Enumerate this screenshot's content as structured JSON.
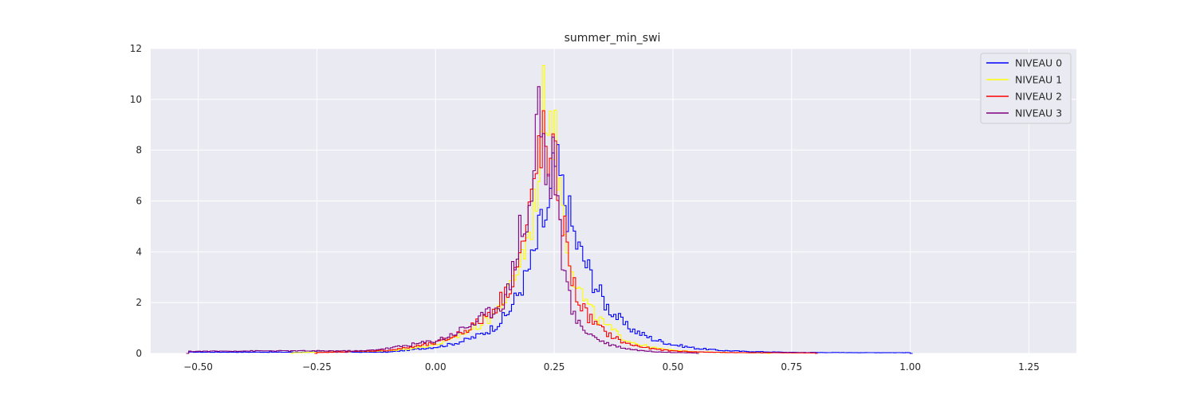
{
  "chart_data": {
    "type": "histogram",
    "title": "summer_min_swi",
    "xlabel": "",
    "ylabel": "",
    "xlim": [
      -0.6,
      1.35
    ],
    "ylim": [
      0,
      12
    ],
    "x_ticks": [
      -0.5,
      -0.25,
      0.0,
      0.25,
      0.5,
      0.75,
      1.0,
      1.25
    ],
    "x_tick_labels": [
      "−0.50",
      "−0.25",
      "0.00",
      "0.25",
      "0.50",
      "0.75",
      "1.00",
      "1.25"
    ],
    "y_ticks": [
      0,
      2,
      4,
      6,
      8,
      10,
      12
    ],
    "y_tick_labels": [
      "0",
      "2",
      "4",
      "6",
      "8",
      "10",
      "12"
    ],
    "grid": true,
    "legend_position": "top-right",
    "series": [
      {
        "name": "NIVEAU 0",
        "color": "#0000ff",
        "x": [
          -0.52,
          -0.1,
          -0.05,
          0.0,
          0.03,
          0.06,
          0.09,
          0.12,
          0.15,
          0.17,
          0.19,
          0.21,
          0.22,
          0.23,
          0.24,
          0.25,
          0.26,
          0.27,
          0.28,
          0.29,
          0.3,
          0.32,
          0.34,
          0.36,
          0.38,
          0.4,
          0.43,
          0.46,
          0.5,
          0.55,
          0.6,
          0.65,
          0.75,
          0.9,
          1.0
        ],
        "y": [
          0.05,
          0.05,
          0.15,
          0.25,
          0.35,
          0.5,
          0.7,
          1.0,
          1.5,
          2.2,
          3.0,
          4.0,
          5.0,
          5.3,
          5.5,
          7.5,
          7.0,
          6.2,
          5.6,
          4.8,
          4.2,
          3.4,
          2.6,
          1.9,
          1.5,
          1.1,
          0.8,
          0.55,
          0.35,
          0.2,
          0.12,
          0.08,
          0.04,
          0.03,
          0.03
        ]
      },
      {
        "name": "NIVEAU 1",
        "color": "#ffff00",
        "x": [
          -0.3,
          -0.1,
          -0.05,
          0.0,
          0.03,
          0.06,
          0.09,
          0.12,
          0.15,
          0.17,
          0.19,
          0.2,
          0.21,
          0.22,
          0.23,
          0.24,
          0.25,
          0.26,
          0.27,
          0.28,
          0.29,
          0.3,
          0.32,
          0.34,
          0.36,
          0.38,
          0.4,
          0.43,
          0.46,
          0.5,
          0.55,
          0.6,
          0.7
        ],
        "y": [
          0.03,
          0.1,
          0.2,
          0.35,
          0.5,
          0.8,
          1.1,
          1.5,
          2.2,
          3.2,
          4.2,
          5.0,
          6.0,
          8.0,
          10.3,
          9.8,
          8.7,
          7.0,
          5.5,
          4.2,
          3.3,
          2.6,
          1.9,
          1.4,
          1.1,
          0.8,
          0.55,
          0.35,
          0.22,
          0.12,
          0.07,
          0.04,
          0.02
        ]
      },
      {
        "name": "NIVEAU 2",
        "color": "#ff0000",
        "x": [
          -0.25,
          -0.1,
          -0.05,
          0.0,
          0.03,
          0.06,
          0.09,
          0.12,
          0.15,
          0.17,
          0.19,
          0.2,
          0.21,
          0.22,
          0.23,
          0.24,
          0.25,
          0.26,
          0.27,
          0.28,
          0.29,
          0.3,
          0.32,
          0.34,
          0.36,
          0.38,
          0.4,
          0.43,
          0.46,
          0.5,
          0.55,
          0.6,
          0.65,
          0.8
        ],
        "y": [
          0.03,
          0.12,
          0.25,
          0.4,
          0.6,
          0.9,
          1.2,
          1.7,
          2.4,
          3.4,
          4.6,
          5.6,
          6.8,
          8.5,
          8.2,
          6.9,
          7.6,
          6.2,
          5.0,
          3.8,
          2.8,
          2.1,
          1.5,
          1.1,
          0.8,
          0.6,
          0.4,
          0.27,
          0.17,
          0.1,
          0.06,
          0.04,
          0.03,
          0.02
        ]
      },
      {
        "name": "NIVEAU 3",
        "color": "#800080",
        "x": [
          -0.52,
          -0.37,
          -0.22,
          -0.15,
          -0.1,
          -0.05,
          0.0,
          0.03,
          0.06,
          0.09,
          0.12,
          0.15,
          0.17,
          0.18,
          0.19,
          0.2,
          0.21,
          0.215,
          0.22,
          0.23,
          0.24,
          0.25,
          0.26,
          0.27,
          0.28,
          0.29,
          0.3,
          0.32,
          0.34,
          0.36,
          0.38,
          0.4,
          0.43,
          0.46,
          0.5,
          0.55
        ],
        "y": [
          0.08,
          0.1,
          0.1,
          0.1,
          0.2,
          0.35,
          0.5,
          0.7,
          1.0,
          1.3,
          1.7,
          2.2,
          4.0,
          5.2,
          4.8,
          6.0,
          7.0,
          11.4,
          9.5,
          7.8,
          6.3,
          8.0,
          5.0,
          3.5,
          2.3,
          1.6,
          1.2,
          0.85,
          0.6,
          0.4,
          0.3,
          0.2,
          0.12,
          0.07,
          0.04,
          0.02
        ]
      }
    ]
  }
}
